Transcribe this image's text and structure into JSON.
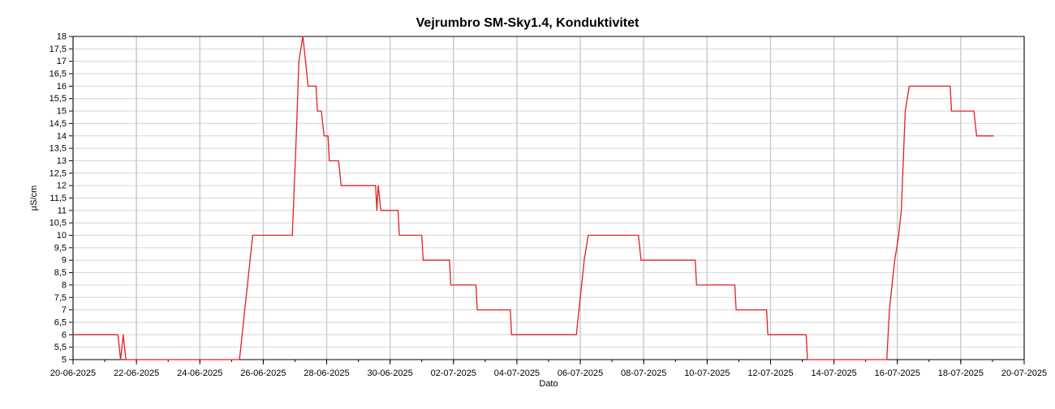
{
  "chart_data": {
    "type": "line",
    "title": "Vejrumbro SM-Sky1.4, Konduktivitet",
    "xlabel": "Dato",
    "ylabel": "µS/cm",
    "xlim": [
      "2025-06-20",
      "2025-07-20"
    ],
    "ylim": [
      5,
      18
    ],
    "x_ticks": [
      "20-06-2025",
      "22-06-2025",
      "24-06-2025",
      "26-06-2025",
      "28-06-2025",
      "30-06-2025",
      "02-07-2025",
      "04-07-2025",
      "06-07-2025",
      "08-07-2025",
      "10-07-2025",
      "12-07-2025",
      "14-07-2025",
      "16-07-2025",
      "18-07-2025",
      "20-07-2025"
    ],
    "y_ticks": [
      "5",
      "5,5",
      "6",
      "6,5",
      "7",
      "7,5",
      "8",
      "8,5",
      "9",
      "9,5",
      "10",
      "10,5",
      "11",
      "11,5",
      "12",
      "12,5",
      "13",
      "13,5",
      "14",
      "14,5",
      "15",
      "15,5",
      "16",
      "16,5",
      "17",
      "17,5",
      "18"
    ],
    "grid": true,
    "line_color": "#e02020",
    "series": [
      {
        "points": [
          [
            "2025-06-20T00:00",
            6
          ],
          [
            "2025-06-21T10:00",
            6
          ],
          [
            "2025-06-21T12:00",
            5
          ],
          [
            "2025-06-21T14:00",
            6
          ],
          [
            "2025-06-21T16:00",
            5
          ],
          [
            "2025-06-25T06:00",
            5
          ],
          [
            "2025-06-25T08:00",
            6
          ],
          [
            "2025-06-25T10:00",
            7
          ],
          [
            "2025-06-25T12:00",
            8
          ],
          [
            "2025-06-25T14:00",
            9
          ],
          [
            "2025-06-25T16:00",
            10
          ],
          [
            "2025-06-26T22:00",
            10
          ],
          [
            "2025-06-27T01:00",
            14
          ],
          [
            "2025-06-27T03:00",
            17
          ],
          [
            "2025-06-27T06:00",
            18
          ],
          [
            "2025-06-27T08:00",
            17
          ],
          [
            "2025-06-27T10:00",
            16
          ],
          [
            "2025-06-27T16:00",
            16
          ],
          [
            "2025-06-27T17:00",
            15
          ],
          [
            "2025-06-27T20:00",
            15
          ],
          [
            "2025-06-27T22:00",
            14
          ],
          [
            "2025-06-28T01:00",
            14
          ],
          [
            "2025-06-28T02:00",
            13
          ],
          [
            "2025-06-28T09:00",
            13
          ],
          [
            "2025-06-28T11:00",
            12
          ],
          [
            "2025-06-29T13:00",
            12
          ],
          [
            "2025-06-29T14:00",
            11
          ],
          [
            "2025-06-29T15:00",
            12
          ],
          [
            "2025-06-29T17:00",
            11
          ],
          [
            "2025-06-30T06:00",
            11
          ],
          [
            "2025-06-30T07:00",
            10
          ],
          [
            "2025-07-01T00:00",
            10
          ],
          [
            "2025-07-01T01:00",
            9
          ],
          [
            "2025-07-01T21:00",
            9
          ],
          [
            "2025-07-01T22:00",
            8
          ],
          [
            "2025-07-02T17:00",
            8
          ],
          [
            "2025-07-02T18:00",
            7
          ],
          [
            "2025-07-03T19:00",
            7
          ],
          [
            "2025-07-03T20:00",
            6
          ],
          [
            "2025-07-05T21:00",
            6
          ],
          [
            "2025-07-05T23:00",
            7
          ],
          [
            "2025-07-06T01:00",
            8
          ],
          [
            "2025-07-06T03:00",
            9
          ],
          [
            "2025-07-06T06:00",
            10
          ],
          [
            "2025-07-07T20:00",
            10
          ],
          [
            "2025-07-07T22:00",
            9
          ],
          [
            "2025-07-09T15:00",
            9
          ],
          [
            "2025-07-09T16:00",
            8
          ],
          [
            "2025-07-10T21:00",
            8
          ],
          [
            "2025-07-10T22:00",
            7
          ],
          [
            "2025-07-11T21:00",
            7
          ],
          [
            "2025-07-11T22:00",
            6
          ],
          [
            "2025-07-13T03:00",
            6
          ],
          [
            "2025-07-13T04:00",
            5
          ],
          [
            "2025-07-15T16:00",
            5
          ],
          [
            "2025-07-15T18:00",
            7
          ],
          [
            "2025-07-15T20:00",
            8
          ],
          [
            "2025-07-15T22:00",
            9
          ],
          [
            "2025-07-16T01:00",
            10
          ],
          [
            "2025-07-16T03:00",
            11
          ],
          [
            "2025-07-16T06:00",
            15
          ],
          [
            "2025-07-16T09:00",
            16
          ],
          [
            "2025-07-17T16:00",
            16
          ],
          [
            "2025-07-17T17:00",
            15
          ],
          [
            "2025-07-18T10:00",
            15
          ],
          [
            "2025-07-18T12:00",
            14
          ],
          [
            "2025-07-19T01:00",
            14
          ]
        ]
      }
    ]
  }
}
